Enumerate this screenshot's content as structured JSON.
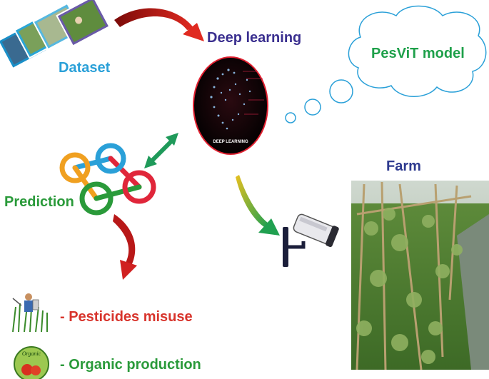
{
  "labels": {
    "dataset": "Dataset",
    "deep_learning": "Deep learning",
    "deep_learning_badge": "DEEP LEARNING",
    "pesvit": "PesViT model",
    "farm": "Farm",
    "prediction": "Prediction",
    "pesticides": "- Pesticides misuse",
    "organic": "- Organic production",
    "organic_badge": "Organic"
  },
  "colors": {
    "dataset": "#2aa0d8",
    "deep_learning": "#3a2f8f",
    "pesvit": "#1ea04a",
    "farm": "#2e3a8f",
    "prediction": "#2a9a3a",
    "pesticides": "#d8342c",
    "organic": "#2a9a3a",
    "red_arrow": "#c8201c",
    "green_arrow": "#1f9a5a"
  }
}
